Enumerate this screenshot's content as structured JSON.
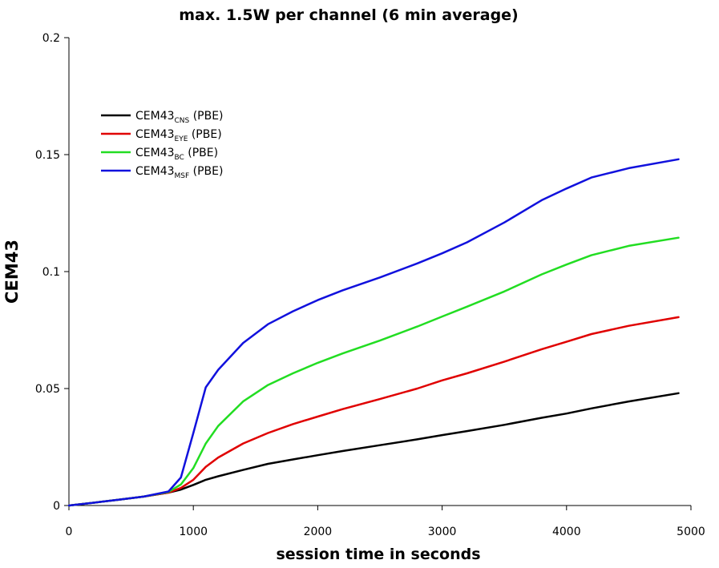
{
  "chart_data": {
    "type": "line",
    "title": "max. 1.5W per channel (6 min average)",
    "xlabel": "session time in seconds",
    "ylabel": "CEM43",
    "xlim": [
      0,
      5000
    ],
    "ylim": [
      0,
      0.2
    ],
    "xticks": [
      0,
      1000,
      2000,
      3000,
      4000,
      5000
    ],
    "xtick_labels": [
      "0",
      "1000",
      "2000",
      "3000",
      "4000",
      "5000"
    ],
    "yticks": [
      0,
      0.05,
      0.1,
      0.15,
      0.2
    ],
    "ytick_labels": [
      "0",
      "0.05",
      "0.1",
      "0.15",
      "0.2"
    ],
    "grid": false,
    "legend_position": "top-left",
    "series": [
      {
        "name": "CEM43CNS (PBE)",
        "label_main": "CEM43",
        "label_sub": "CNS",
        "label_suffix": " (PBE)",
        "color": "#000000",
        "x": [
          0,
          200,
          400,
          600,
          800,
          900,
          1000,
          1100,
          1200,
          1400,
          1600,
          1800,
          2000,
          2200,
          2500,
          2800,
          3000,
          3200,
          3500,
          3800,
          4000,
          4200,
          4500,
          4900
        ],
        "y": [
          0,
          0.0012,
          0.0025,
          0.0038,
          0.0055,
          0.0068,
          0.0088,
          0.011,
          0.0125,
          0.0152,
          0.0178,
          0.0197,
          0.0215,
          0.0233,
          0.0258,
          0.0283,
          0.0301,
          0.0318,
          0.0345,
          0.0375,
          0.0393,
          0.0415,
          0.0445,
          0.048
        ]
      },
      {
        "name": "CEM43EYE (PBE)",
        "label_main": "CEM43",
        "label_sub": "EYE",
        "label_suffix": " (PBE)",
        "color": "#e00000",
        "x": [
          0,
          200,
          400,
          600,
          800,
          900,
          1000,
          1100,
          1200,
          1400,
          1600,
          1800,
          2000,
          2200,
          2500,
          2800,
          3000,
          3200,
          3500,
          3800,
          4000,
          4200,
          4500,
          4900
        ],
        "y": [
          0,
          0.0012,
          0.0025,
          0.0038,
          0.0055,
          0.0075,
          0.011,
          0.0165,
          0.0205,
          0.0265,
          0.031,
          0.0348,
          0.038,
          0.0412,
          0.0455,
          0.05,
          0.0535,
          0.0565,
          0.0615,
          0.0668,
          0.07,
          0.0733,
          0.0768,
          0.0805
        ]
      },
      {
        "name": "CEM43BC (PBE)",
        "label_main": "CEM43",
        "label_sub": "BC",
        "label_suffix": " (PBE)",
        "color": "#22dd22",
        "x": [
          0,
          200,
          400,
          600,
          800,
          900,
          1000,
          1100,
          1200,
          1400,
          1600,
          1800,
          2000,
          2200,
          2500,
          2800,
          3000,
          3200,
          3500,
          3800,
          4000,
          4200,
          4500,
          4900
        ],
        "y": [
          0,
          0.0012,
          0.0025,
          0.0038,
          0.0058,
          0.009,
          0.016,
          0.0265,
          0.034,
          0.0445,
          0.0515,
          0.0565,
          0.061,
          0.065,
          0.0705,
          0.0765,
          0.0808,
          0.085,
          0.0915,
          0.0988,
          0.103,
          0.107,
          0.111,
          0.1145
        ]
      },
      {
        "name": "CEM43MSF (PBE)",
        "label_main": "CEM43",
        "label_sub": "MSF",
        "label_suffix": " (PBE)",
        "color": "#1111dd",
        "x": [
          0,
          200,
          400,
          600,
          800,
          900,
          1000,
          1100,
          1200,
          1400,
          1600,
          1800,
          2000,
          2200,
          2500,
          2800,
          3000,
          3200,
          3500,
          3800,
          4000,
          4200,
          4500,
          4900
        ],
        "y": [
          0,
          0.0012,
          0.0025,
          0.0038,
          0.006,
          0.012,
          0.031,
          0.0505,
          0.058,
          0.0695,
          0.0775,
          0.083,
          0.0878,
          0.092,
          0.0975,
          0.1035,
          0.1078,
          0.1125,
          0.121,
          0.1305,
          0.1355,
          0.1402,
          0.1442,
          0.148
        ]
      }
    ]
  }
}
